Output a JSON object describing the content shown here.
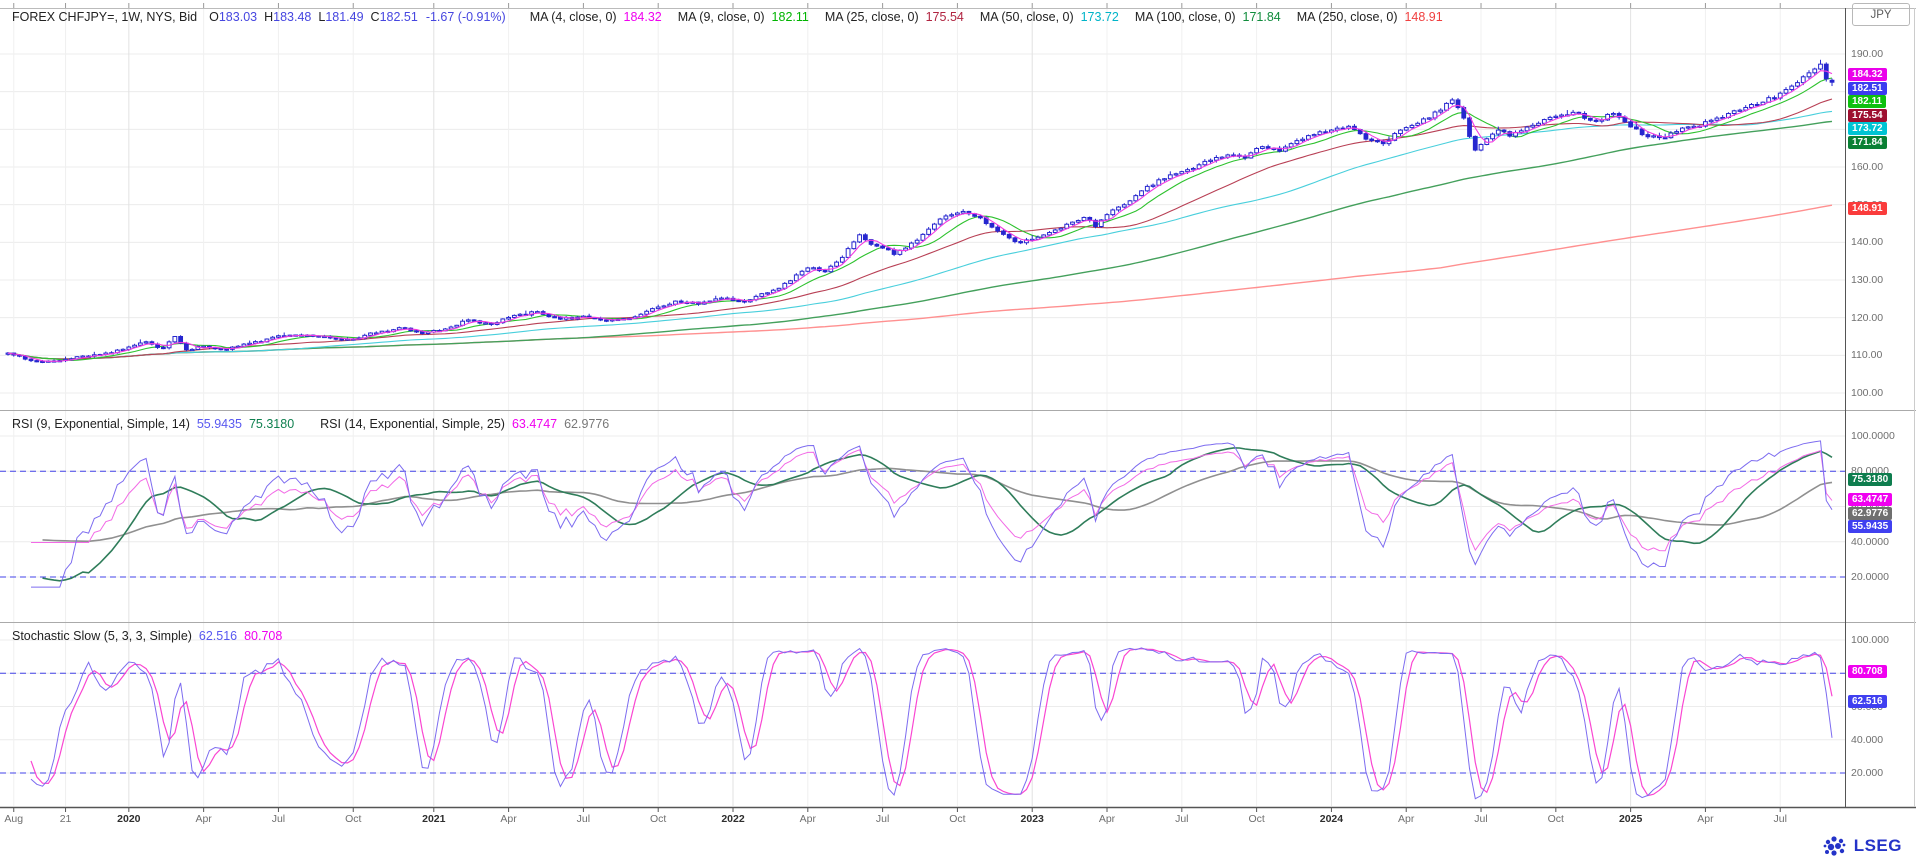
{
  "header": {
    "title": "FOREX CHFJPY=, 1W, NYS, Bid",
    "value_color": "#4646e0",
    "ohlc": [
      {
        "label": "O",
        "value": "183.03"
      },
      {
        "label": "H",
        "value": "183.48"
      },
      {
        "label": "L",
        "value": "181.49"
      },
      {
        "label": "C",
        "value": "182.51"
      }
    ],
    "change": "-1.67 (-0.91%)",
    "mas": [
      {
        "label": "MA (4, close, 0)",
        "value": "184.32",
        "color": "#f000f0"
      },
      {
        "label": "MA (9, close, 0)",
        "value": "182.11",
        "color": "#00b400"
      },
      {
        "label": "MA (25, close, 0)",
        "value": "175.54",
        "color": "#b02440"
      },
      {
        "label": "MA (50, close, 0)",
        "value": "173.72",
        "color": "#00b4c8"
      },
      {
        "label": "MA (100, close, 0)",
        "value": "171.84",
        "color": "#108c3c"
      },
      {
        "label": "MA (250, close, 0)",
        "value": "148.91",
        "color": "#f04040"
      }
    ]
  },
  "rsi_header": {
    "items": [
      {
        "label": "RSI (9, Exponential, Simple, 14)",
        "values": [
          {
            "text": "55.9435",
            "color": "#5858f0"
          },
          {
            "text": "75.3180",
            "color": "#108050"
          }
        ]
      },
      {
        "label": "RSI (14, Exponential, Simple, 25)",
        "values": [
          {
            "text": "63.4747",
            "color": "#f000f0"
          },
          {
            "text": "62.9776",
            "color": "#787878"
          }
        ]
      }
    ]
  },
  "stoch_header": {
    "label": "Stochastic Slow (5, 3, 3, Simple)",
    "values": [
      {
        "text": "62.516",
        "color": "#5858f0"
      },
      {
        "text": "80.708",
        "color": "#f000f0"
      }
    ]
  },
  "axes": {
    "currency": "JPY",
    "price_ticks": [
      {
        "v": 190,
        "t": "190.00"
      },
      {
        "v": 180,
        "t": "180.00"
      },
      {
        "v": 170,
        "t": "170.00"
      },
      {
        "v": 160,
        "t": "160.00"
      },
      {
        "v": 150,
        "t": "150.00"
      },
      {
        "v": 140,
        "t": "140.00"
      },
      {
        "v": 130,
        "t": "130.00"
      },
      {
        "v": 120,
        "t": "120.00"
      },
      {
        "v": 110,
        "t": "110.00"
      },
      {
        "v": 100,
        "t": "100.00"
      }
    ],
    "rsi_ticks": [
      {
        "v": 100,
        "t": "100.0000"
      },
      {
        "v": 80,
        "t": "80.0000"
      },
      {
        "v": 60,
        "t": "60.0000"
      },
      {
        "v": 40,
        "t": "40.0000"
      },
      {
        "v": 20,
        "t": "20.0000"
      }
    ],
    "stoch_ticks": [
      {
        "v": 100,
        "t": "100.000"
      },
      {
        "v": 80,
        "t": "80.000"
      },
      {
        "v": 60,
        "t": "60.000"
      },
      {
        "v": 40,
        "t": "40.000"
      },
      {
        "v": 20,
        "t": "20.000"
      }
    ]
  },
  "badges": {
    "price": [
      {
        "v": 184.32,
        "t": "184.32",
        "bg": "#ea00ea"
      },
      {
        "v": 182.51,
        "t": "182.51",
        "bg": "#3c3cf0"
      },
      {
        "v": 182.11,
        "t": "182.11",
        "bg": "#0fc00f"
      },
      {
        "v": 175.54,
        "t": "175.54",
        "bg": "#9e1030"
      },
      {
        "v": 173.72,
        "t": "173.72",
        "bg": "#00c4d4"
      },
      {
        "v": 171.84,
        "t": "171.84",
        "bg": "#0a8034"
      },
      {
        "v": 148.91,
        "t": "148.91",
        "bg": "#fa3c3c"
      }
    ],
    "rsi": [
      {
        "v": 75.318,
        "t": "75.3180",
        "bg": "#0e7d4e"
      },
      {
        "v": 63.4747,
        "t": "63.4747",
        "bg": "#f000f0"
      },
      {
        "v": 62.9776,
        "t": "62.9776",
        "bg": "#6f6f6f"
      },
      {
        "v": 55.9435,
        "t": "55.9435",
        "bg": "#4040f0"
      }
    ],
    "stoch": [
      {
        "v": 80.708,
        "t": "80.708",
        "bg": "#f000f0"
      },
      {
        "v": 62.516,
        "t": "62.516",
        "bg": "#4040f0"
      }
    ]
  },
  "logo": {
    "text": "LSEG",
    "color": "#2433c8"
  },
  "chart_data": {
    "type": "candlestick",
    "instrument": "FOREX CHFJPY=",
    "interval": "1W",
    "venue": "NYS",
    "field": "Bid",
    "title": "FOREX CHFJPY=, 1W, NYS, Bid",
    "weeks": 318,
    "last_bar": {
      "open": 183.03,
      "high": 183.48,
      "low": 181.49,
      "close": 182.51,
      "change": -1.67,
      "change_pct": -0.91
    },
    "close_anchors": [
      [
        0,
        110.6
      ],
      [
        3,
        109.0
      ],
      [
        6,
        108.2
      ],
      [
        9,
        108.6
      ],
      [
        13,
        109.8
      ],
      [
        17,
        110.6
      ],
      [
        21,
        112.2
      ],
      [
        24,
        113.6
      ],
      [
        27,
        112.0
      ],
      [
        29,
        115.0
      ],
      [
        31,
        111.5
      ],
      [
        34,
        112.4
      ],
      [
        38,
        111.6
      ],
      [
        42,
        113.2
      ],
      [
        46,
        114.8
      ],
      [
        50,
        115.4
      ],
      [
        54,
        115.0
      ],
      [
        58,
        114.2
      ],
      [
        61,
        114.6
      ],
      [
        65,
        116.4
      ],
      [
        69,
        117.2
      ],
      [
        72,
        115.8
      ],
      [
        76,
        117.0
      ],
      [
        80,
        119.4
      ],
      [
        84,
        118.2
      ],
      [
        88,
        120.6
      ],
      [
        92,
        121.6
      ],
      [
        96,
        119.6
      ],
      [
        100,
        120.4
      ],
      [
        104,
        119.2
      ],
      [
        108,
        119.8
      ],
      [
        112,
        122.4
      ],
      [
        116,
        124.4
      ],
      [
        120,
        123.6
      ],
      [
        124,
        125.2
      ],
      [
        128,
        124.2
      ],
      [
        132,
        126.6
      ],
      [
        136,
        129.8
      ],
      [
        139,
        133.2
      ],
      [
        142,
        132.2
      ],
      [
        145,
        136.0
      ],
      [
        148,
        142.0
      ],
      [
        151,
        139.0
      ],
      [
        154,
        136.8
      ],
      [
        157,
        139.8
      ],
      [
        160,
        143.5
      ],
      [
        163,
        147.0
      ],
      [
        166,
        148.2
      ],
      [
        169,
        146.5
      ],
      [
        172,
        143.0
      ],
      [
        175,
        140.2
      ],
      [
        178,
        140.8
      ],
      [
        181,
        142.6
      ],
      [
        184,
        144.8
      ],
      [
        187,
        146.6
      ],
      [
        189,
        144.2
      ],
      [
        192,
        148.6
      ],
      [
        196,
        152.4
      ],
      [
        200,
        156.6
      ],
      [
        203,
        158.2
      ],
      [
        206,
        159.6
      ],
      [
        209,
        161.8
      ],
      [
        212,
        163.2
      ],
      [
        215,
        162.4
      ],
      [
        218,
        165.4
      ],
      [
        221,
        164.2
      ],
      [
        224,
        167.0
      ],
      [
        227,
        168.6
      ],
      [
        230,
        169.8
      ],
      [
        233,
        170.8
      ],
      [
        236,
        167.4
      ],
      [
        239,
        166.2
      ],
      [
        242,
        169.8
      ],
      [
        245,
        171.6
      ],
      [
        248,
        174.6
      ],
      [
        251,
        177.8
      ],
      [
        253,
        173.0
      ],
      [
        255,
        164.5
      ],
      [
        257,
        167.5
      ],
      [
        259,
        169.8
      ],
      [
        261,
        168.2
      ],
      [
        264,
        170.6
      ],
      [
        267,
        172.6
      ],
      [
        270,
        173.8
      ],
      [
        273,
        174.2
      ],
      [
        276,
        172.2
      ],
      [
        279,
        174.2
      ],
      [
        281,
        172.0
      ],
      [
        284,
        168.6
      ],
      [
        287,
        167.8
      ],
      [
        290,
        169.4
      ],
      [
        293,
        170.8
      ],
      [
        296,
        172.4
      ],
      [
        299,
        174.2
      ],
      [
        302,
        175.8
      ],
      [
        305,
        177.2
      ],
      [
        308,
        179.6
      ],
      [
        311,
        182.4
      ],
      [
        313,
        185.0
      ],
      [
        315,
        187.3
      ],
      [
        316,
        183.4
      ],
      [
        317,
        182.51
      ]
    ],
    "candle_color": "#2626cf",
    "overlays": [
      {
        "name": "MA4",
        "period": 4,
        "color": "#f23ae0",
        "last": 184.32
      },
      {
        "name": "MA9",
        "period": 9,
        "color": "#2ec22e",
        "last": 182.11
      },
      {
        "name": "MA25",
        "period": 25,
        "color": "#b84055",
        "last": 175.54
      },
      {
        "name": "MA50",
        "period": 50,
        "color": "#49cfdc",
        "last": 173.72
      },
      {
        "name": "MA100",
        "period": 100,
        "color": "#44a05c",
        "last": 171.84
      },
      {
        "name": "MA250",
        "period": 250,
        "color": "#ff9090",
        "last": 148.91
      }
    ],
    "rsi_panel": {
      "lines": [
        {
          "name": "RSI9",
          "color": "#7d6cf0",
          "last": 55.9435
        },
        {
          "name": "RSI9-smooth14",
          "color": "#2f7d5a",
          "last": 75.318
        },
        {
          "name": "RSI14",
          "color": "#f26ae6",
          "last": 63.4747
        },
        {
          "name": "RSI14-smooth25",
          "color": "#909090",
          "last": 62.9776
        }
      ],
      "levels": [
        80,
        20
      ],
      "range": [
        0,
        100
      ]
    },
    "stoch_panel": {
      "lines": [
        {
          "name": "%K-slow",
          "color": "#7d6cf0",
          "last": 62.516
        },
        {
          "name": "%D",
          "color": "#fa46d2",
          "last": 80.708
        }
      ],
      "levels": [
        80,
        20
      ],
      "range": [
        0,
        100
      ]
    },
    "level_line_color": "#4343e8",
    "x_ticks": [
      [
        "Aug",
        1
      ],
      [
        "21",
        10
      ],
      [
        "2020",
        21
      ],
      [
        "Apr",
        34
      ],
      [
        "Jul",
        47
      ],
      [
        "Oct",
        60
      ],
      [
        "2021",
        74
      ],
      [
        "Apr",
        87
      ],
      [
        "Jul",
        100
      ],
      [
        "Oct",
        113
      ],
      [
        "2022",
        126
      ],
      [
        "Apr",
        139
      ],
      [
        "Jul",
        152
      ],
      [
        "Oct",
        165
      ],
      [
        "2023",
        178
      ],
      [
        "Apr",
        191
      ],
      [
        "Jul",
        204
      ],
      [
        "Oct",
        217
      ],
      [
        "2024",
        230
      ],
      [
        "Apr",
        243
      ],
      [
        "Jul",
        256
      ],
      [
        "Oct",
        269
      ],
      [
        "2025",
        282
      ],
      [
        "Apr",
        295
      ],
      [
        "Jul",
        308
      ]
    ],
    "price_axis_range": [
      96,
      200
    ]
  }
}
